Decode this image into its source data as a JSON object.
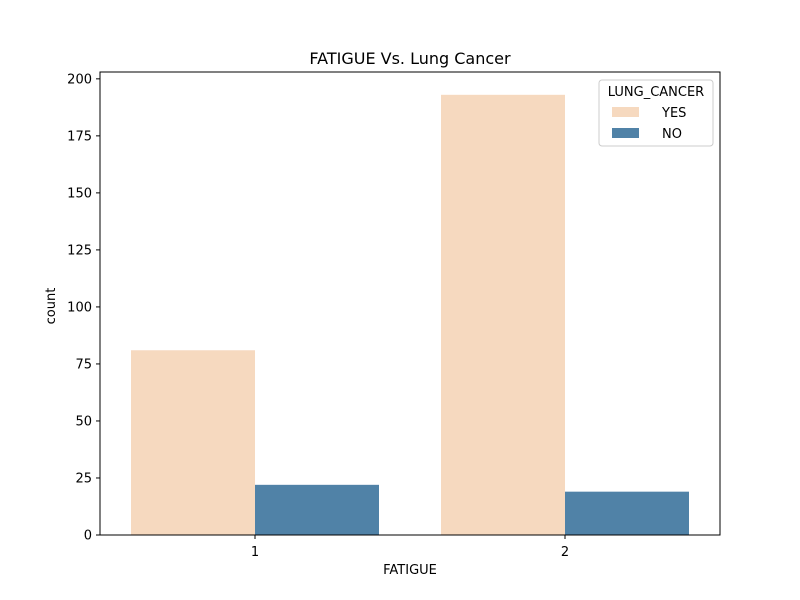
{
  "chart_data": {
    "type": "bar",
    "title": "FATIGUE Vs. Lung Cancer",
    "xlabel": "FATIGUE",
    "ylabel": "count",
    "categories": [
      "1",
      "2"
    ],
    "series": [
      {
        "name": "YES",
        "color": "#f6d9bf",
        "values": [
          81,
          193
        ]
      },
      {
        "name": "NO",
        "color": "#5082a7",
        "values": [
          22,
          19
        ]
      }
    ],
    "ylim": [
      0,
      203
    ],
    "yticks": [
      0,
      25,
      50,
      75,
      100,
      125,
      150,
      175,
      200
    ],
    "legend": {
      "title": "LUNG_CANCER",
      "placement": "top-right"
    },
    "grid": false
  }
}
